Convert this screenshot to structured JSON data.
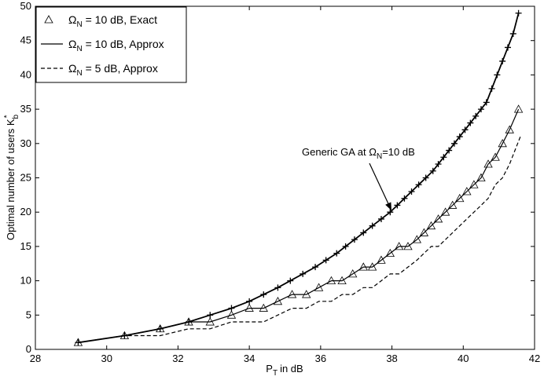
{
  "chart_data": {
    "type": "line",
    "title": "",
    "xlabel": "in dB",
    "xlabel_symbol": "P",
    "xlabel_sub": "T",
    "ylabel": "Optimal number of users K",
    "ylabel_sub": "b",
    "ylabel_sup": "*",
    "xlim": [
      28,
      42
    ],
    "ylim": [
      0,
      50
    ],
    "xticks": [
      28,
      30,
      32,
      34,
      36,
      38,
      40,
      42
    ],
    "yticks": [
      0,
      5,
      10,
      15,
      20,
      25,
      30,
      35,
      40,
      45,
      50
    ],
    "grid": false,
    "legend_position": "top-left",
    "legend": [
      {
        "omega": "Ω",
        "sub": "N",
        "text": " = 10 dB, Exact",
        "style": "triangle"
      },
      {
        "omega": "Ω",
        "sub": "N",
        "text": " = 10 dB, Approx",
        "style": "solid"
      },
      {
        "omega": "Ω",
        "sub": "N",
        "text": " = 5 dB, Approx",
        "style": "dashed"
      }
    ],
    "annotation": {
      "text_before": "Generic GA at ",
      "omega": "Ω",
      "sub": "N",
      "text_after": "=10 dB",
      "points_to": [
        38.0,
        20.0
      ]
    },
    "series": [
      {
        "style": "plus",
        "color": "#000000",
        "x": [
          29.2,
          30.5,
          31.5,
          32.3,
          32.9,
          33.5,
          34.0,
          34.4,
          34.8,
          35.15,
          35.5,
          35.85,
          36.15,
          36.45,
          36.7,
          36.95,
          37.2,
          37.45,
          37.7,
          37.95,
          38.15,
          38.35,
          38.55,
          38.75,
          38.95,
          39.15,
          39.3,
          39.45,
          39.6,
          39.75,
          39.9,
          40.05,
          40.2,
          40.35,
          40.5,
          40.65,
          40.8,
          40.95,
          41.1,
          41.25,
          41.4,
          41.55
        ],
        "y": [
          1,
          2,
          3,
          4,
          5,
          6,
          7,
          8,
          9,
          10,
          11,
          12,
          13,
          14,
          15,
          16,
          17,
          18,
          19,
          20,
          21,
          22,
          23,
          24,
          25,
          26,
          27,
          28,
          29,
          30,
          31,
          32,
          33,
          34,
          35,
          36,
          38,
          40,
          42,
          44,
          46,
          49
        ]
      },
      {
        "style": "triangle",
        "color": "#000000",
        "x": [
          29.2,
          30.5,
          31.5,
          32.3,
          32.9,
          33.5,
          34.0,
          34.4,
          34.8,
          35.2,
          35.6,
          35.95,
          36.3,
          36.6,
          36.9,
          37.2,
          37.45,
          37.7,
          37.95,
          38.2,
          38.45,
          38.7,
          38.9,
          39.1,
          39.3,
          39.5,
          39.7,
          39.9,
          40.1,
          40.3,
          40.5,
          40.7,
          40.9,
          41.1,
          41.3,
          41.55
        ],
        "y": [
          1,
          2,
          3,
          4,
          4,
          5,
          6,
          6,
          7,
          8,
          8,
          9,
          10,
          10,
          11,
          12,
          12,
          13,
          14,
          15,
          15,
          16,
          17,
          18,
          19,
          20,
          21,
          22,
          23,
          24,
          25,
          27,
          28,
          30,
          32,
          35
        ]
      },
      {
        "style": "solid",
        "color": "#000000",
        "x": [
          29.2,
          30.5,
          31.5,
          32.3,
          32.9,
          33.5,
          34.0,
          34.4,
          34.8,
          35.2,
          35.6,
          35.95,
          36.3,
          36.6,
          36.9,
          37.2,
          37.45,
          37.7,
          37.95,
          38.2,
          38.45,
          38.7,
          38.9,
          39.1,
          39.3,
          39.5,
          39.7,
          39.9,
          40.1,
          40.3,
          40.5,
          40.7,
          40.9,
          41.1,
          41.3,
          41.55
        ],
        "y": [
          1,
          2,
          3,
          4,
          4,
          5,
          6,
          6,
          7,
          8,
          8,
          9,
          10,
          10,
          11,
          12,
          12,
          13,
          14,
          15,
          15,
          16,
          17,
          18,
          19,
          20,
          21,
          22,
          23,
          24,
          25,
          27,
          28,
          30,
          32,
          35
        ]
      },
      {
        "style": "dashed",
        "color": "#000000",
        "x": [
          29.2,
          30.5,
          31.5,
          32.3,
          32.9,
          33.5,
          34.0,
          34.4,
          34.8,
          35.2,
          35.6,
          35.95,
          36.3,
          36.6,
          36.9,
          37.2,
          37.45,
          37.7,
          37.95,
          38.2,
          38.45,
          38.7,
          38.9,
          39.1,
          39.3,
          39.5,
          39.7,
          39.9,
          40.1,
          40.3,
          40.5,
          40.7,
          40.9,
          41.1,
          41.3,
          41.6
        ],
        "y": [
          1,
          2,
          2,
          3,
          3,
          4,
          4,
          4,
          5,
          6,
          6,
          7,
          7,
          8,
          8,
          9,
          9,
          10,
          11,
          11,
          12,
          13,
          14,
          15,
          15,
          16,
          17,
          18,
          19,
          20,
          21,
          22,
          24,
          25,
          27,
          31
        ]
      }
    ]
  }
}
